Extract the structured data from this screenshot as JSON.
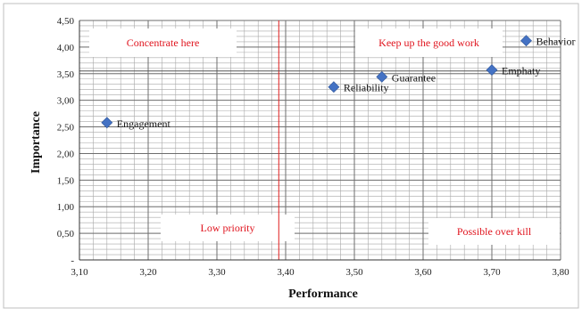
{
  "chart_data": {
    "type": "scatter",
    "xlabel": "Performance",
    "ylabel": "Importance",
    "xlim": [
      3.1,
      3.8
    ],
    "ylim": [
      0,
      4.5
    ],
    "x_ticks": [
      "3,10",
      "3,20",
      "3,30",
      "3,40",
      "3,50",
      "3,60",
      "3,70",
      "3,80"
    ],
    "x_tick_values": [
      3.1,
      3.2,
      3.3,
      3.4,
      3.5,
      3.6,
      3.7,
      3.8
    ],
    "y_ticks": [
      "-",
      "0,50",
      "1,00",
      "1,50",
      "2,00",
      "2,50",
      "3,00",
      "3,50",
      "4,00",
      "4,50"
    ],
    "y_tick_values": [
      0,
      0.5,
      1.0,
      1.5,
      2.0,
      2.5,
      3.0,
      3.5,
      4.0,
      4.5
    ],
    "grid": true,
    "marker_color": "#4472c4",
    "divider_color": "#e02020",
    "divider_x": 3.39,
    "divider_y": 3.55,
    "points": [
      {
        "label": "Engagement",
        "x": 3.14,
        "y": 2.58
      },
      {
        "label": "Reliability",
        "x": 3.47,
        "y": 3.25
      },
      {
        "label": "Guarantee",
        "x": 3.54,
        "y": 3.44
      },
      {
        "label": "Emphaty",
        "x": 3.7,
        "y": 3.57
      },
      {
        "label": "Behavior",
        "x": 3.75,
        "y": 4.12
      }
    ],
    "quadrant_labels": {
      "top_left": "Concentrate here",
      "top_right": "Keep up the good work",
      "bottom_left": "Low priority",
      "bottom_right": "Possible over kill"
    }
  }
}
